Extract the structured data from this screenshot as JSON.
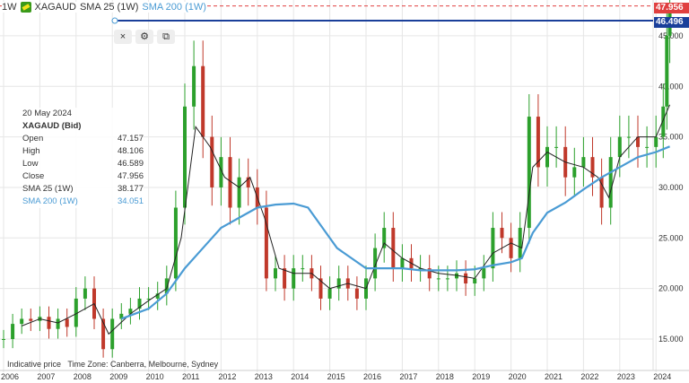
{
  "header": {
    "interval": "1W",
    "symbol": "XAGAUD",
    "sma25": "SMA 25 (1W)",
    "sma200": "SMA 200 (1W)"
  },
  "toolbar": {
    "close": "×",
    "settings": "⚙",
    "copy": "⧉"
  },
  "tooltip": {
    "date": "20 May 2024",
    "title": "XAGAUD (Bid)",
    "rows": [
      [
        "Open",
        "47.157"
      ],
      [
        "High",
        "48.106"
      ],
      [
        "Low",
        "46.589"
      ],
      [
        "Close",
        "47.956"
      ],
      [
        "SMA 25 (1W)",
        "38.177"
      ]
    ],
    "sma200": [
      "SMA 200 (1W)",
      "34.051"
    ]
  },
  "footer": {
    "note": "Indicative price",
    "timezone": "Time Zone: Canberra, Melbourne, Sydney"
  },
  "price_tags": {
    "last": "47.956",
    "line": "46.496"
  },
  "colors": {
    "up": "#2ca02c",
    "down": "#c0392b",
    "sma25": "#222222",
    "sma200": "#4a9bd4",
    "hline": "#1a3f9a",
    "last": "#e04040"
  },
  "chart_data": {
    "type": "candlestick",
    "xlim": [
      2006,
      2024.6
    ],
    "ylim": [
      12.5,
      48.5
    ],
    "x_ticks": [
      "2006",
      "2007",
      "2008",
      "2009",
      "2010",
      "2011",
      "2012",
      "2013",
      "2014",
      "2015",
      "2016",
      "2017",
      "2018",
      "2019",
      "2020",
      "2021",
      "2022",
      "2023",
      "2024"
    ],
    "y_ticks": [
      "15.000",
      "20.000",
      "25.000",
      "30.000",
      "35.000",
      "40.000",
      "45.000"
    ],
    "grid": true,
    "horizontal_line": 46.496,
    "last_price": 47.956,
    "close": [
      [
        2006,
        15
      ],
      [
        2006.25,
        16.5
      ],
      [
        2006.5,
        17
      ],
      [
        2006.75,
        16.8
      ],
      [
        2007,
        17.2
      ],
      [
        2007.25,
        16
      ],
      [
        2007.5,
        17
      ],
      [
        2007.75,
        16.2
      ],
      [
        2008,
        19
      ],
      [
        2008.25,
        20
      ],
      [
        2008.5,
        17
      ],
      [
        2008.75,
        14
      ],
      [
        2009,
        17
      ],
      [
        2009.25,
        17.5
      ],
      [
        2009.5,
        18
      ],
      [
        2009.75,
        19
      ],
      [
        2010,
        19
      ],
      [
        2010.25,
        19.5
      ],
      [
        2010.5,
        21
      ],
      [
        2010.75,
        28
      ],
      [
        2011,
        38
      ],
      [
        2011.25,
        42
      ],
      [
        2011.5,
        35
      ],
      [
        2011.75,
        30
      ],
      [
        2012,
        33
      ],
      [
        2012.25,
        28
      ],
      [
        2012.5,
        31
      ],
      [
        2012.75,
        30
      ],
      [
        2013,
        28
      ],
      [
        2013.25,
        21
      ],
      [
        2013.5,
        22
      ],
      [
        2013.75,
        20
      ],
      [
        2014,
        22
      ],
      [
        2014.25,
        22
      ],
      [
        2014.5,
        21
      ],
      [
        2014.75,
        19
      ],
      [
        2015,
        20
      ],
      [
        2015.25,
        21
      ],
      [
        2015.5,
        20
      ],
      [
        2015.75,
        19
      ],
      [
        2016,
        21
      ],
      [
        2016.25,
        24
      ],
      [
        2016.5,
        26
      ],
      [
        2016.75,
        22
      ],
      [
        2017,
        23
      ],
      [
        2017.25,
        22
      ],
      [
        2017.5,
        22
      ],
      [
        2017.75,
        21
      ],
      [
        2018,
        21
      ],
      [
        2018.25,
        21
      ],
      [
        2018.5,
        21.5
      ],
      [
        2018.75,
        20.5
      ],
      [
        2019,
        21
      ],
      [
        2019.25,
        22
      ],
      [
        2019.5,
        26
      ],
      [
        2019.75,
        25
      ],
      [
        2020,
        23
      ],
      [
        2020.25,
        26
      ],
      [
        2020.5,
        37
      ],
      [
        2020.75,
        32
      ],
      [
        2021,
        34
      ],
      [
        2021.25,
        34
      ],
      [
        2021.5,
        31
      ],
      [
        2021.75,
        32
      ],
      [
        2022,
        33
      ],
      [
        2022.25,
        31
      ],
      [
        2022.5,
        28
      ],
      [
        2022.75,
        33
      ],
      [
        2023,
        35
      ],
      [
        2023.25,
        35
      ],
      [
        2023.5,
        34
      ],
      [
        2023.75,
        34
      ],
      [
        2024,
        35
      ],
      [
        2024.2,
        38
      ],
      [
        2024.3,
        45
      ],
      [
        2024.38,
        47.956
      ]
    ],
    "series": [
      {
        "name": "SMA 25 (1W)",
        "values": [
          [
            2006.5,
            16.3
          ],
          [
            2007,
            17
          ],
          [
            2007.5,
            16.6
          ],
          [
            2008,
            17.5
          ],
          [
            2008.5,
            18.5
          ],
          [
            2008.9,
            15.5
          ],
          [
            2009.5,
            17.5
          ],
          [
            2010,
            18.8
          ],
          [
            2010.5,
            20
          ],
          [
            2010.9,
            25
          ],
          [
            2011.3,
            36
          ],
          [
            2011.7,
            34
          ],
          [
            2012.1,
            31
          ],
          [
            2012.5,
            30
          ],
          [
            2012.8,
            31
          ],
          [
            2013.2,
            27
          ],
          [
            2013.6,
            22
          ],
          [
            2014,
            21.5
          ],
          [
            2014.5,
            21.5
          ],
          [
            2015,
            20
          ],
          [
            2015.5,
            20.5
          ],
          [
            2016,
            20
          ],
          [
            2016.5,
            24.5
          ],
          [
            2017,
            23
          ],
          [
            2017.5,
            22
          ],
          [
            2018,
            21.5
          ],
          [
            2018.5,
            21.3
          ],
          [
            2019,
            21
          ],
          [
            2019.5,
            23.5
          ],
          [
            2020,
            24.5
          ],
          [
            2020.3,
            24
          ],
          [
            2020.6,
            32
          ],
          [
            2021,
            33.5
          ],
          [
            2021.5,
            32.5
          ],
          [
            2022,
            32
          ],
          [
            2022.4,
            31
          ],
          [
            2022.7,
            29
          ],
          [
            2023,
            33
          ],
          [
            2023.5,
            35
          ],
          [
            2024,
            35
          ],
          [
            2024.38,
            38.177
          ]
        ]
      },
      {
        "name": "SMA 200 (1W)",
        "values": [
          [
            2009.25,
            17
          ],
          [
            2010,
            18
          ],
          [
            2010.5,
            19.5
          ],
          [
            2011,
            22
          ],
          [
            2011.5,
            24
          ],
          [
            2012,
            26
          ],
          [
            2012.5,
            27
          ],
          [
            2013,
            28
          ],
          [
            2013.5,
            28.3
          ],
          [
            2014,
            28.4
          ],
          [
            2014.4,
            28
          ],
          [
            2014.8,
            26
          ],
          [
            2015.2,
            24
          ],
          [
            2015.6,
            23
          ],
          [
            2016,
            22
          ],
          [
            2016.5,
            22
          ],
          [
            2017,
            22
          ],
          [
            2017.5,
            21.8
          ],
          [
            2018,
            21.8
          ],
          [
            2018.5,
            21.8
          ],
          [
            2019,
            21.9
          ],
          [
            2019.5,
            22.3
          ],
          [
            2020,
            22.6
          ],
          [
            2020.3,
            23
          ],
          [
            2020.6,
            25.5
          ],
          [
            2021,
            27.5
          ],
          [
            2021.5,
            28.5
          ],
          [
            2022,
            29.8
          ],
          [
            2022.5,
            31
          ],
          [
            2023,
            32
          ],
          [
            2023.5,
            33
          ],
          [
            2024,
            33.5
          ],
          [
            2024.38,
            34.051
          ]
        ]
      }
    ]
  }
}
